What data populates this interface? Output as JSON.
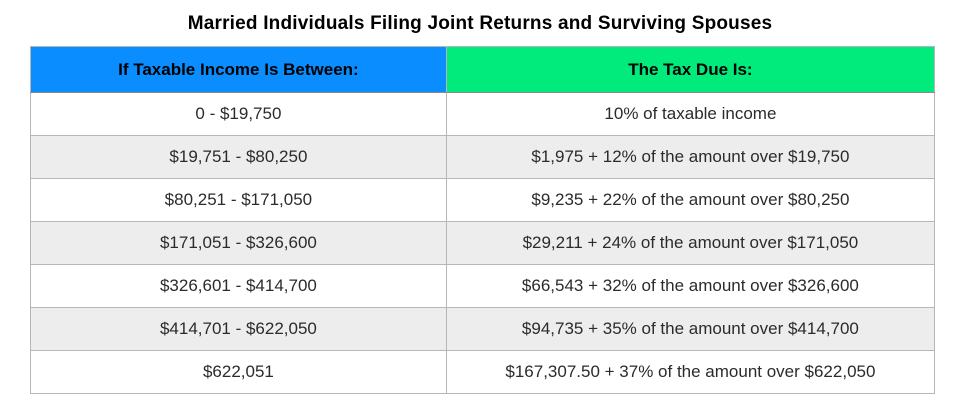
{
  "title": "Married Individuals Filing Joint Returns and Surviving Spouses",
  "table": {
    "headers": [
      "If Taxable Income Is Between:",
      "The Tax Due Is:"
    ],
    "rows": [
      {
        "income": "0 - $19,750",
        "tax": "10% of taxable income"
      },
      {
        "income": "$19,751 - $80,250",
        "tax": "$1,975 + 12% of the amount over $19,750"
      },
      {
        "income": "$80,251 - $171,050",
        "tax": "$9,235 + 22% of the amount over $80,250"
      },
      {
        "income": "$171,051 - $326,600",
        "tax": "$29,211 + 24% of the amount over $171,050"
      },
      {
        "income": "$326,601 - $414,700",
        "tax": "$66,543 + 32% of the amount over $326,600"
      },
      {
        "income": "$414,701 - $622,050",
        "tax": "$94,735 + 35% of the amount over $414,700"
      },
      {
        "income": "$622,051",
        "tax": "$167,307.50 + 37% of the amount over $622,050"
      }
    ]
  },
  "colors": {
    "header_income_bg": "#0a8eff",
    "header_tax_bg": "#00eb7c",
    "row_alt_bg": "#ededed",
    "border": "#b7b7b7",
    "title_text": "#000000",
    "body_text": "#2b2b2b"
  },
  "chart_data": {
    "type": "table",
    "title": "Married Individuals Filing Joint Returns and Surviving Spouses",
    "columns": [
      "If Taxable Income Is Between:",
      "The Tax Due Is:"
    ],
    "rows": [
      [
        "0 - $19,750",
        "10% of taxable income"
      ],
      [
        "$19,751 - $80,250",
        "$1,975 + 12% of the amount over $19,750"
      ],
      [
        "$80,251 - $171,050",
        "$9,235 + 22% of the amount over $80,250"
      ],
      [
        "$171,051 - $326,600",
        "$29,211 + 24% of the amount over $171,050"
      ],
      [
        "$326,601 - $414,700",
        "$66,543 + 32% of the amount over $326,600"
      ],
      [
        "$414,701 - $622,050",
        "$94,735 + 35% of the amount over $414,700"
      ],
      [
        "$622,051",
        "$167,307.50 + 37% of the amount over $622,050"
      ]
    ],
    "brackets": [
      {
        "min": 0,
        "max": 19750,
        "rate_pct": 10,
        "base_tax": 0,
        "over": 0
      },
      {
        "min": 19751,
        "max": 80250,
        "rate_pct": 12,
        "base_tax": 1975,
        "over": 19750
      },
      {
        "min": 80251,
        "max": 171050,
        "rate_pct": 22,
        "base_tax": 9235,
        "over": 80250
      },
      {
        "min": 171051,
        "max": 326600,
        "rate_pct": 24,
        "base_tax": 29211,
        "over": 171050
      },
      {
        "min": 326601,
        "max": 414700,
        "rate_pct": 32,
        "base_tax": 66543,
        "over": 326600
      },
      {
        "min": 414701,
        "max": 622050,
        "rate_pct": 35,
        "base_tax": 94735,
        "over": 414700
      },
      {
        "min": 622051,
        "max": null,
        "rate_pct": 37,
        "base_tax": 167307.5,
        "over": 622050
      }
    ]
  }
}
